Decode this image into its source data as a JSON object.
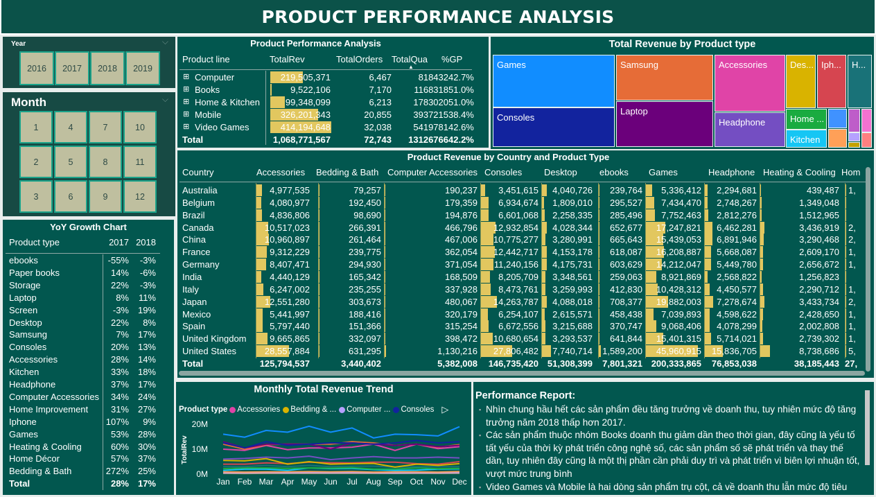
{
  "header": {
    "title": "PRODUCT PERFORMANCE ANALYSIS"
  },
  "year_slicer": {
    "label": "Year",
    "options": [
      "2016",
      "2017",
      "2018",
      "2019"
    ]
  },
  "month_slicer": {
    "label": "Month",
    "options": [
      "1",
      "4",
      "7",
      "10",
      "2",
      "5",
      "8",
      "11",
      "3",
      "6",
      "9",
      "12"
    ]
  },
  "yoy": {
    "title": "YoY Growth Chart",
    "headers": [
      "Product type",
      "2017",
      "2018"
    ],
    "rows": [
      [
        "ebooks",
        "-55%",
        "-3%"
      ],
      [
        "Paper books",
        "14%",
        "-6%"
      ],
      [
        "Storage",
        "22%",
        "-3%"
      ],
      [
        "Laptop",
        "8%",
        "11%"
      ],
      [
        "Screen",
        "-3%",
        "19%"
      ],
      [
        "Desktop",
        "22%",
        "8%"
      ],
      [
        "Samsung",
        "7%",
        "17%"
      ],
      [
        "Consoles",
        "20%",
        "13%"
      ],
      [
        "Accessories",
        "28%",
        "14%"
      ],
      [
        "Kitchen",
        "33%",
        "18%"
      ],
      [
        "Headphone",
        "37%",
        "17%"
      ],
      [
        "Computer Accessories",
        "34%",
        "24%"
      ],
      [
        "Home Improvement",
        "31%",
        "27%"
      ],
      [
        "Iphone",
        "107%",
        "9%"
      ],
      [
        "Games",
        "53%",
        "28%"
      ],
      [
        "Heating & Cooling",
        "60%",
        "30%"
      ],
      [
        "Home Décor",
        "57%",
        "37%"
      ],
      [
        "Bedding & Bath",
        "272%",
        "25%"
      ]
    ],
    "total": [
      "Total",
      "28%",
      "17%"
    ]
  },
  "product_table": {
    "title": "Product Performance Analysis",
    "headers": [
      "Product line",
      "TotalRev",
      "TotalOrders",
      "TotalQua",
      "%GP"
    ],
    "sorted_column": "TotalQua",
    "rows": [
      [
        "Computer",
        "219,505,371",
        "6,467",
        "818432",
        "42.7%"
      ],
      [
        "Books",
        "9,522,106",
        "7,170",
        "1168318",
        "51.0%"
      ],
      [
        "Home & Kitchen",
        "99,348,099",
        "6,213",
        "1783020",
        "51.0%"
      ],
      [
        "Mobile",
        "326,201,343",
        "20,855",
        "3937215",
        "38.4%"
      ],
      [
        "Video Games",
        "414,194,648",
        "32,038",
        "5419781",
        "42.6%"
      ]
    ],
    "total": [
      "Total",
      "1,068,771,567",
      "72,743",
      "13126766",
      "42.2%"
    ]
  },
  "treemap": {
    "title": "Total Revenue by Product type",
    "tiles": [
      {
        "label": "Games",
        "color": "#118dff"
      },
      {
        "label": "Consoles",
        "color": "#12239e"
      },
      {
        "label": "Samsung",
        "color": "#e66c37"
      },
      {
        "label": "Laptop",
        "color": "#6b007b"
      },
      {
        "label": "Accessories",
        "color": "#e044a7"
      },
      {
        "label": "Headphone",
        "color": "#744ec2"
      },
      {
        "label": "Des...",
        "color": "#d9b300"
      },
      {
        "label": "Iph...",
        "color": "#d64550"
      },
      {
        "label": "H...",
        "color": "#197278"
      },
      {
        "label": "Home ...",
        "color": "#1aab40"
      },
      {
        "label": "Kitchen",
        "color": "#15c6f4"
      },
      {
        "label": "",
        "color": "#4092ff"
      },
      {
        "label": "",
        "color": "#ffa058"
      },
      {
        "label": "",
        "color": "#be5dc9"
      },
      {
        "label": "",
        "color": "#f472d0"
      },
      {
        "label": "",
        "color": "#b5a1ff"
      },
      {
        "label": "",
        "color": "#c4a200"
      },
      {
        "label": "",
        "color": "#ff8080"
      }
    ]
  },
  "country_table": {
    "title": "Product Revenue by Country and Product Type",
    "headers": [
      "Country",
      "Accessories",
      "Bedding & Bath",
      "Computer Accessories",
      "Consoles",
      "Desktop",
      "ebooks",
      "Games",
      "Headphone",
      "Heating & Cooling",
      "Hom"
    ],
    "rows": [
      [
        "Australia",
        "4,977,535",
        "79,257",
        "190,237",
        "3,451,615",
        "4,040,726",
        "239,764",
        "5,336,412",
        "2,294,681",
        "439,487",
        "1,"
      ],
      [
        "Belgium",
        "4,080,977",
        "192,450",
        "179,359",
        "6,934,674",
        "1,809,010",
        "295,527",
        "7,434,470",
        "2,748,267",
        "1,349,048",
        ""
      ],
      [
        "Brazil",
        "4,836,806",
        "98,690",
        "194,876",
        "6,601,068",
        "2,258,335",
        "285,496",
        "7,752,463",
        "2,812,276",
        "1,512,965",
        ""
      ],
      [
        "Canada",
        "10,517,023",
        "266,391",
        "466,796",
        "12,932,854",
        "4,028,344",
        "652,677",
        "17,247,821",
        "6,462,281",
        "3,436,919",
        "2,"
      ],
      [
        "China",
        "10,960,897",
        "261,464",
        "467,006",
        "10,775,277",
        "3,280,991",
        "665,643",
        "15,439,053",
        "6,891,946",
        "3,290,468",
        "2,"
      ],
      [
        "France",
        "9,312,229",
        "239,775",
        "362,054",
        "12,442,717",
        "4,153,178",
        "618,087",
        "16,208,887",
        "5,668,087",
        "2,609,170",
        "1,"
      ],
      [
        "Germany",
        "8,407,471",
        "294,930",
        "371,054",
        "11,240,156",
        "4,175,731",
        "603,629",
        "14,212,047",
        "5,449,780",
        "2,656,672",
        "1,"
      ],
      [
        "India",
        "4,440,129",
        "165,342",
        "168,509",
        "8,205,709",
        "3,348,561",
        "259,063",
        "8,921,869",
        "2,568,822",
        "1,256,823",
        ""
      ],
      [
        "Italy",
        "6,247,002",
        "235,255",
        "337,928",
        "8,473,761",
        "3,259,993",
        "412,830",
        "10,428,312",
        "4,450,577",
        "2,290,712",
        "1,"
      ],
      [
        "Japan",
        "12,551,280",
        "303,673",
        "480,067",
        "14,263,787",
        "4,088,018",
        "708,377",
        "19,882,003",
        "7,278,674",
        "3,433,734",
        "2,"
      ],
      [
        "Mexico",
        "5,441,997",
        "188,416",
        "320,179",
        "6,254,107",
        "2,615,571",
        "458,438",
        "7,039,893",
        "4,598,622",
        "2,428,650",
        "1,"
      ],
      [
        "Spain",
        "5,797,440",
        "151,366",
        "315,254",
        "6,672,556",
        "3,215,688",
        "370,747",
        "9,068,406",
        "4,078,299",
        "2,002,808",
        "1,"
      ],
      [
        "United Kingdom",
        "9,665,865",
        "332,097",
        "398,472",
        "10,680,654",
        "3,293,537",
        "641,844",
        "15,401,315",
        "5,714,021",
        "2,739,302",
        "1,"
      ],
      [
        "United States",
        "28,557,884",
        "631,295",
        "1,130,216",
        "27,806,482",
        "7,740,714",
        "1,589,200",
        "45,960,915",
        "15,836,705",
        "8,738,686",
        "5,"
      ]
    ],
    "total": [
      "Total",
      "125,794,537",
      "3,440,402",
      "5,382,008",
      "146,735,420",
      "51,308,399",
      "7,801,321",
      "200,333,865",
      "76,853,038",
      "38,185,443",
      "27,"
    ]
  },
  "chart_data": {
    "type": "line",
    "title": "Monthly Total Revenue Trend",
    "ylabel": "TotalRev",
    "xlabel": "",
    "legend_title": "Product type",
    "legend_position": "top",
    "legend": [
      {
        "name": "Accessories",
        "color": "#e044a7"
      },
      {
        "name": "Bedding & ...",
        "color": "#d9b300"
      },
      {
        "name": "Computer ...",
        "color": "#b5a1ff"
      },
      {
        "name": "Consoles",
        "color": "#12239e"
      }
    ],
    "categories": [
      "Jan",
      "Feb",
      "Mar",
      "Apr",
      "May",
      "Jun",
      "Jul",
      "Aug",
      "Sep",
      "Oct",
      "Nov",
      "Dec"
    ],
    "yticks": [
      "0M",
      "10M",
      "20M"
    ],
    "ylim": [
      0,
      20
    ],
    "unit": "M",
    "series": [
      {
        "color": "#118dff",
        "values": [
          16,
          14.8,
          17.5,
          16.8,
          19.2,
          16.8,
          18.5,
          14.5,
          16,
          15.8,
          15.3,
          19
        ]
      },
      {
        "name": "Consoles",
        "color": "#12239e",
        "values": [
          12.5,
          10.5,
          13,
          11.5,
          12,
          12.5,
          12.5,
          12,
          12.5,
          13.5,
          12.5,
          13
        ]
      },
      {
        "color": "#6b007b",
        "values": [
          13,
          10.5,
          12,
          12,
          12,
          10,
          12.5,
          12,
          11.5,
          12,
          11,
          11.5
        ]
      },
      {
        "color": "#e66c37",
        "values": [
          12,
          10,
          11.8,
          12,
          12,
          12,
          13,
          12.5,
          11.5,
          12,
          10.8,
          11.8
        ]
      },
      {
        "name": "Accessories",
        "color": "#e044a7",
        "values": [
          10,
          9.5,
          11.5,
          9.8,
          10.5,
          10.5,
          10.8,
          12,
          9.5,
          12,
          10.2,
          11
        ]
      },
      {
        "color": "#744ec2",
        "values": [
          6,
          6.3,
          6.8,
          6.5,
          7.2,
          5.8,
          6.5,
          7,
          6.5,
          6.5,
          6.8,
          6.5
        ]
      },
      {
        "color": "#d9b300",
        "values": [
          5.5,
          5.3,
          6.2,
          4,
          5,
          4,
          4.2,
          4.3,
          2.8,
          4,
          3.5,
          4.2
        ]
      },
      {
        "color": "#d64550",
        "values": [
          4,
          4,
          4.5,
          4.2,
          4.8,
          4.6,
          4.5,
          4.8,
          4.8,
          4.2,
          4,
          5
        ]
      },
      {
        "color": "#197278",
        "values": [
          3,
          3,
          3.5,
          3,
          3.5,
          3,
          3.2,
          3.2,
          2.8,
          3,
          3,
          3
        ]
      },
      {
        "color": "#1aab40",
        "values": [
          2.2,
          2.5,
          2.5,
          2.3,
          2.5,
          2.4,
          2.6,
          2,
          2,
          2.5,
          2.2,
          2.3
        ]
      },
      {
        "color": "#15c6f4",
        "values": [
          1.5,
          2,
          2,
          1.5,
          2.5,
          2.2,
          2.3,
          1.8,
          1.5,
          1.6,
          2,
          2.1
        ]
      },
      {
        "color": "#ffa058",
        "values": [
          0.9,
          0.8,
          0.9,
          0.9,
          1,
          0.9,
          1,
          0.8,
          0.9,
          0.9,
          0.8,
          1
        ]
      },
      {
        "name": "Computer ...",
        "color": "#b5a1ff",
        "values": [
          0.45,
          0.4,
          0.5,
          0.45,
          0.5,
          0.45,
          0.5,
          0.45,
          0.4,
          0.45,
          0.45,
          0.5
        ]
      },
      {
        "name": "Bedding & ...",
        "color": "#c4a200",
        "values": [
          0.3,
          0.25,
          0.3,
          0.3,
          0.3,
          0.3,
          0.3,
          0.3,
          0.28,
          0.3,
          0.3,
          0.35
        ]
      },
      {
        "color": "#ff8080",
        "values": [
          0.6,
          0.55,
          0.6,
          0.6,
          0.65,
          0.6,
          0.6,
          0.55,
          0.6,
          0.6,
          0.6,
          0.6
        ]
      }
    ]
  },
  "report": {
    "title": "Performance Report:",
    "bullets": [
      "Nhìn chung hầu hết các sản phẩm đều tăng trưởng về doanh thu, tuy nhiên mức độ tăng trưởng năm 2018 thấp hơn 2017.",
      "Các sản phẩm thuộc nhóm Books doanh thu giảm dần theo thời gian, đây cũng là yếu tố tất yếu của thời kỳ phát triển công nghệ số, các sản phẩm số sẽ phát triển và thay thế dần, tuy nhiên đây cũng là một thị phần cần phải duy trì và phát triển vì biên lợi nhuận tốt, vượt mức trung bình",
      "Video Games và Mobile là hai dòng sản phẩm trụ cột, cả về doanh thu lẫn mức độ tiêu"
    ]
  }
}
